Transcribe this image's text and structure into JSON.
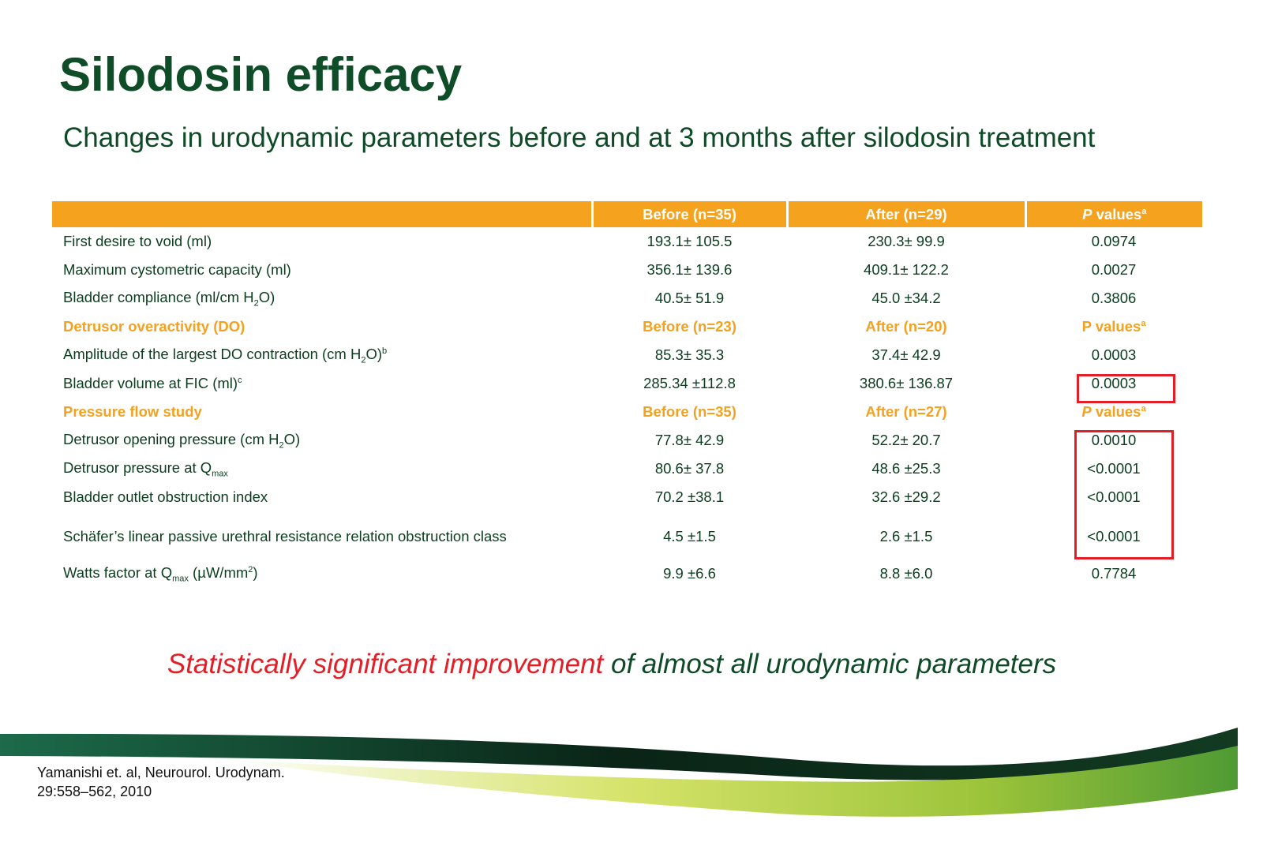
{
  "title": "Silodosin efficacy",
  "subtitle": "Changes in urodynamic parameters before and at 3 months after silodosin treatment",
  "table": {
    "header": [
      "Before (n=35)",
      "After (n=29)",
      [
        "P",
        " values",
        "a"
      ]
    ],
    "rows": [
      [
        "First desire to void (ml)",
        "193.1± 105.5",
        "230.3± 99.9",
        "0.0974"
      ],
      [
        "Maximum cystometric capacity (ml)",
        "356.1± 139.6",
        "409.1± 122.2",
        "0.0027"
      ],
      [
        [
          "Bladder compliance (ml/cm H",
          "2",
          "O)"
        ],
        "40.5± 51.9",
        "45.0 ±34.2",
        "0.3806"
      ],
      [
        "Detrusor overactivity (DO)",
        "Before (n=23)",
        "After (n=20)",
        [
          "P values",
          "a"
        ]
      ],
      [
        [
          "Amplitude of the largest DO contraction (cm H",
          "2",
          "O)",
          "b"
        ],
        "85.3± 35.3",
        "37.4± 42.9",
        "0.0003"
      ],
      [
        [
          "Bladder volume at FIC (ml)",
          "c"
        ],
        "285.34 ±112.8",
        "380.6± 136.87",
        "0.0003"
      ],
      [
        "Pressure flow study",
        "Before (n=35)",
        "After (n=27)",
        [
          "P",
          " values",
          "a"
        ]
      ],
      [
        [
          "Detrusor opening pressure (cm H",
          "2",
          "O)"
        ],
        "77.8± 42.9",
        "52.2± 20.7",
        "0.0010"
      ],
      [
        [
          "Detrusor pressure at Q",
          "max"
        ],
        "80.6± 37.8",
        "48.6 ±25.3",
        "<0.0001"
      ],
      [
        "Bladder outlet obstruction index",
        "70.2 ±38.1",
        "32.6 ±29.2",
        "<0.0001"
      ],
      [
        "Schäfer’s linear passive urethral resistance relation obstruction class",
        "4.5 ±1.5",
        "2.6 ±1.5",
        "<0.0001"
      ],
      [
        [
          "Watts factor at Q",
          "max",
          " (µW/mm",
          "2",
          ")"
        ],
        "9.9 ±6.6",
        "8.8 ±6.0",
        "0.7784"
      ]
    ]
  },
  "conclusion": [
    "Statistically significant improvement",
    " of almost all urodynamic parameters"
  ],
  "reference": [
    "Yamanishi et. al, Neurourol. Urodynam.",
    "29:558–562, 2010"
  ]
}
